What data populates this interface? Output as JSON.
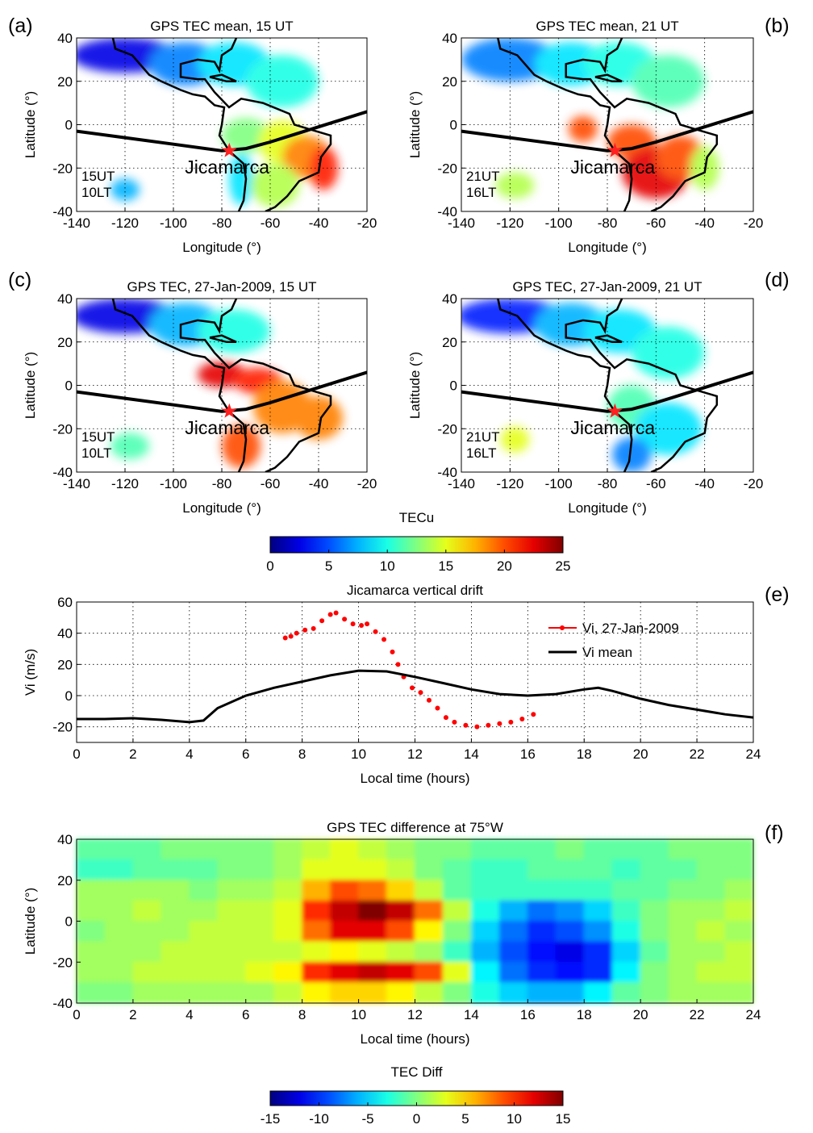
{
  "chart_data": [
    {
      "type": "map",
      "panel": "(a)",
      "title": "GPS TEC mean, 15 UT",
      "xlabel": "Longitude (°)",
      "ylabel": "Latitude (°)",
      "xlim": [
        -140,
        -20
      ],
      "ylim": [
        -40,
        40
      ],
      "xticks": [
        -140,
        -120,
        -100,
        -80,
        -60,
        -40,
        -20
      ],
      "yticks": [
        -40,
        -20,
        0,
        20,
        40
      ],
      "annotations": [
        "15UT",
        "10LT"
      ],
      "site": {
        "label": "Jicamarca",
        "lon": -76.9,
        "lat": -12
      },
      "grid": true
    },
    {
      "type": "map",
      "panel": "(b)",
      "title": "GPS TEC mean, 21 UT",
      "xlabel": "Longitude (°)",
      "ylabel": "Latitude (°)",
      "xlim": [
        -140,
        -20
      ],
      "ylim": [
        -40,
        40
      ],
      "xticks": [
        -140,
        -120,
        -100,
        -80,
        -60,
        -40,
        -20
      ],
      "yticks": [
        -40,
        -20,
        0,
        20,
        40
      ],
      "annotations": [
        "21UT",
        "16LT"
      ],
      "site": {
        "label": "Jicamarca",
        "lon": -76.9,
        "lat": -12
      },
      "grid": true
    },
    {
      "type": "map",
      "panel": "(c)",
      "title": "GPS TEC, 27-Jan-2009, 15 UT",
      "xlabel": "Longitude (°)",
      "ylabel": "Latitude (°)",
      "xlim": [
        -140,
        -20
      ],
      "ylim": [
        -40,
        40
      ],
      "xticks": [
        -140,
        -120,
        -100,
        -80,
        -60,
        -40,
        -20
      ],
      "yticks": [
        -40,
        -20,
        0,
        20,
        40
      ],
      "annotations": [
        "15UT",
        "10LT"
      ],
      "site": {
        "label": "Jicamarca",
        "lon": -76.9,
        "lat": -12
      },
      "grid": true
    },
    {
      "type": "map",
      "panel": "(d)",
      "title": "GPS TEC, 27-Jan-2009, 21 UT",
      "xlabel": "Longitude (°)",
      "ylabel": "Latitude (°)",
      "xlim": [
        -140,
        -20
      ],
      "ylim": [
        -40,
        40
      ],
      "xticks": [
        -140,
        -120,
        -100,
        -80,
        -60,
        -40,
        -20
      ],
      "yticks": [
        -40,
        -20,
        0,
        20,
        40
      ],
      "annotations": [
        "21UT",
        "16LT"
      ],
      "site": {
        "label": "Jicamarca",
        "lon": -76.9,
        "lat": -12
      },
      "grid": true
    },
    {
      "type": "colorbar",
      "label": "TECu",
      "clim": [
        0,
        25
      ],
      "ticks": [
        0,
        5,
        10,
        15,
        20,
        25
      ]
    },
    {
      "type": "line",
      "panel": "(e)",
      "title": "Jicamarca vertical drift",
      "xlabel": "Local time (hours)",
      "ylabel": "Vi (m/s)",
      "xlim": [
        0,
        24
      ],
      "ylim": [
        -30,
        60
      ],
      "xticks": [
        0,
        2,
        4,
        6,
        8,
        10,
        12,
        14,
        16,
        18,
        20,
        22,
        24
      ],
      "yticks": [
        -20,
        0,
        20,
        40,
        60
      ],
      "grid": true,
      "series": [
        {
          "name": "Vi, 27-Jan-2009",
          "color": "#ff0000",
          "markers": true,
          "x": [
            7.4,
            7.6,
            7.8,
            8.1,
            8.4,
            8.7,
            9.0,
            9.2,
            9.5,
            9.8,
            10.1,
            10.3,
            10.6,
            10.9,
            11.2,
            11.4,
            11.6,
            11.9,
            12.2,
            12.5,
            12.8,
            13.1,
            13.4,
            13.8,
            14.2,
            14.6,
            15.0,
            15.4,
            15.8,
            16.2
          ],
          "values": [
            37,
            38,
            40,
            42,
            43,
            48,
            52,
            53,
            49,
            46,
            45,
            46,
            41,
            36,
            28,
            20,
            12,
            5,
            2,
            -3,
            -8,
            -14,
            -17,
            -19,
            -20,
            -19,
            -18,
            -17,
            -15,
            -12
          ]
        },
        {
          "name": "Vi mean",
          "color": "#000000",
          "markers": false,
          "x": [
            0,
            1,
            2,
            3,
            4,
            4.5,
            5,
            6,
            7,
            8,
            9,
            10,
            11,
            12,
            13,
            14,
            15,
            16,
            17,
            18,
            18.5,
            19,
            20,
            21,
            22,
            23,
            24
          ],
          "values": [
            -15,
            -15,
            -14.5,
            -15.5,
            -17,
            -16,
            -8,
            0,
            5,
            9,
            13,
            16,
            15.5,
            12,
            8,
            4,
            1,
            0,
            1,
            4,
            5,
            3,
            -2,
            -6,
            -9,
            -12,
            -14
          ]
        }
      ]
    },
    {
      "type": "heatmap",
      "panel": "(f)",
      "title": "GPS TEC difference at 75°W",
      "xlabel": "Local time (hours)",
      "ylabel": "Latitude (°)",
      "xlim": [
        0,
        24
      ],
      "ylim": [
        -40,
        40
      ],
      "xticks": [
        0,
        2,
        4,
        6,
        8,
        10,
        12,
        14,
        16,
        18,
        20,
        22,
        24
      ],
      "yticks": [
        -40,
        -20,
        0,
        20,
        40
      ],
      "x": [
        0.5,
        1.5,
        2.5,
        3.5,
        4.5,
        5.5,
        6.5,
        7.5,
        8.5,
        9.5,
        10.5,
        11.5,
        12.5,
        13.5,
        14.5,
        15.5,
        16.5,
        17.5,
        18.5,
        19.5,
        20.5,
        21.5,
        22.5,
        23.5
      ],
      "y": [
        35,
        25,
        15,
        5,
        -5,
        -15,
        -25,
        -35
      ],
      "z": [
        [
          -1,
          -1,
          -1,
          0,
          0,
          0,
          0,
          1,
          2,
          3,
          2,
          1,
          0,
          0,
          -1,
          -1,
          -1,
          0,
          -1,
          -1,
          -1,
          0,
          0,
          0
        ],
        [
          -2,
          -2,
          -1,
          -1,
          -1,
          0,
          0,
          1,
          3,
          3,
          3,
          2,
          0,
          -1,
          -2,
          -2,
          -1,
          -1,
          -1,
          -2,
          -1,
          -1,
          0,
          0
        ],
        [
          1,
          1,
          1,
          1,
          0,
          1,
          1,
          2,
          6,
          9,
          8,
          5,
          2,
          -1,
          -2,
          -2,
          -2,
          -2,
          -2,
          -1,
          -1,
          0,
          0,
          1
        ],
        [
          1,
          1,
          2,
          1,
          1,
          2,
          2,
          3,
          10,
          13,
          15,
          13,
          8,
          2,
          -3,
          -6,
          -8,
          -7,
          -5,
          -2,
          0,
          1,
          1,
          2
        ],
        [
          0,
          1,
          1,
          1,
          2,
          2,
          2,
          3,
          8,
          12,
          12,
          9,
          4,
          0,
          -5,
          -8,
          -10,
          -9,
          -7,
          -3,
          0,
          1,
          2,
          1
        ],
        [
          1,
          1,
          1,
          2,
          2,
          2,
          2,
          2,
          3,
          4,
          3,
          2,
          1,
          -2,
          -6,
          -9,
          -11,
          -12,
          -10,
          -5,
          -1,
          1,
          1,
          2
        ],
        [
          1,
          1,
          2,
          2,
          2,
          2,
          3,
          4,
          10,
          12,
          13,
          12,
          9,
          3,
          -4,
          -8,
          -10,
          -11,
          -10,
          -4,
          0,
          1,
          2,
          2
        ],
        [
          0,
          0,
          1,
          1,
          1,
          1,
          1,
          2,
          4,
          5,
          5,
          4,
          2,
          0,
          -3,
          -5,
          -6,
          -6,
          -4,
          -1,
          0,
          1,
          1,
          1
        ]
      ],
      "colorbar": {
        "label": "TEC Diff",
        "clim": [
          -15,
          15
        ],
        "ticks": [
          -15,
          -10,
          -5,
          0,
          5,
          10,
          15
        ]
      }
    }
  ]
}
